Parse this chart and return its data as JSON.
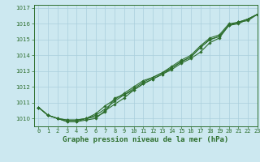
{
  "title": "Graphe pression niveau de la mer (hPa)",
  "bg_color": "#cce8f0",
  "grid_color": "#aacfdc",
  "line_color": "#2d6e2d",
  "marker_color": "#2d6e2d",
  "xlim": [
    -0.5,
    23
  ],
  "ylim": [
    1009.5,
    1017.2
  ],
  "yticks": [
    1010,
    1011,
    1012,
    1013,
    1014,
    1015,
    1016,
    1017
  ],
  "xticks": [
    0,
    1,
    2,
    3,
    4,
    5,
    6,
    7,
    8,
    9,
    10,
    11,
    12,
    13,
    14,
    15,
    16,
    17,
    18,
    19,
    20,
    21,
    22,
    23
  ],
  "series": [
    [
      1010.7,
      1010.2,
      1010.0,
      1009.8,
      1009.8,
      1010.0,
      1010.1,
      1010.4,
      1011.3,
      1011.5,
      1011.8,
      1012.2,
      1012.5,
      1012.8,
      1013.1,
      1013.5,
      1013.8,
      1014.2,
      1014.8,
      1015.1,
      1015.9,
      1016.1,
      1016.3,
      1016.6
    ],
    [
      1010.7,
      1010.2,
      1010.0,
      1009.9,
      1009.9,
      1010.0,
      1010.3,
      1010.8,
      1011.2,
      1011.6,
      1012.0,
      1012.4,
      1012.6,
      1012.9,
      1013.3,
      1013.7,
      1014.0,
      1014.6,
      1015.1,
      1015.3,
      1016.0,
      1016.1,
      1016.3,
      1016.6
    ],
    [
      1010.7,
      1010.2,
      1010.0,
      1009.8,
      1009.8,
      1009.9,
      1010.0,
      1010.5,
      1010.9,
      1011.3,
      1011.8,
      1012.2,
      1012.5,
      1012.8,
      1013.2,
      1013.6,
      1013.9,
      1014.5,
      1015.0,
      1015.2,
      1015.9,
      1016.1,
      1016.2,
      1016.6
    ],
    [
      1010.7,
      1010.2,
      1010.0,
      1009.9,
      1009.9,
      1010.0,
      1010.2,
      1010.6,
      1011.1,
      1011.5,
      1011.9,
      1012.3,
      1012.6,
      1012.9,
      1013.2,
      1013.6,
      1013.9,
      1014.5,
      1015.0,
      1015.2,
      1015.9,
      1016.0,
      1016.3,
      1016.6
    ]
  ],
  "title_fontsize": 6.5,
  "tick_fontsize": 5.0
}
